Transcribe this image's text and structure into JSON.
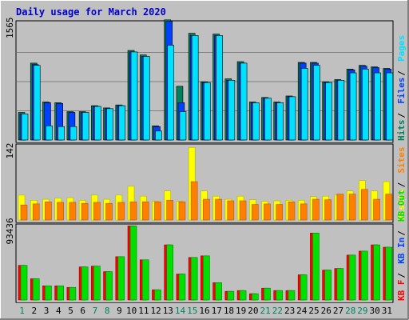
{
  "title": "Daily usage for March 2020",
  "colors": {
    "background": "#c0c0c0",
    "frame": "#ffffff",
    "title": "#0000cc",
    "hits": "#00805c",
    "files": "#0040ff",
    "pages": "#00e0ff",
    "visits": "#ffff00",
    "sites": "#ff8000",
    "kb_in": "#ff0000",
    "kb_out": "#00e000",
    "weekday": "#000000",
    "weekend": "#00805c"
  },
  "chart_data": [
    {
      "type": "bar",
      "panel": "hits-files-pages",
      "ymax_label": "1565",
      "ylim": [
        0,
        1565
      ],
      "categories": [
        "1",
        "2",
        "3",
        "4",
        "5",
        "6",
        "7",
        "8",
        "9",
        "10",
        "11",
        "12",
        "13",
        "14",
        "15",
        "16",
        "17",
        "18",
        "19",
        "20",
        "21",
        "22",
        "23",
        "24",
        "25",
        "26",
        "27",
        "28",
        "29",
        "30",
        "31"
      ],
      "legend": [
        {
          "label": "Hits",
          "color": "#00805c"
        },
        {
          "label": "Files",
          "color": "#0040ff"
        },
        {
          "label": "Pages",
          "color": "#00e0ff"
        }
      ],
      "series": [
        {
          "name": "Hits",
          "values": [
            370,
            1030,
            510,
            500,
            380,
            380,
            460,
            430,
            470,
            1200,
            1140,
            190,
            1610,
            720,
            1430,
            780,
            1420,
            820,
            1050,
            510,
            570,
            510,
            590,
            1040,
            1040,
            780,
            810,
            950,
            1000,
            980,
            960
          ]
        },
        {
          "name": "Files",
          "values": [
            350,
            1010,
            500,
            490,
            370,
            370,
            450,
            420,
            460,
            1180,
            1120,
            180,
            1590,
            500,
            1400,
            770,
            1400,
            800,
            1030,
            500,
            560,
            500,
            580,
            1030,
            1030,
            770,
            800,
            940,
            990,
            970,
            950
          ]
        },
        {
          "name": "Pages",
          "values": [
            350,
            1000,
            190,
            180,
            180,
            370,
            450,
            420,
            460,
            1180,
            1120,
            120,
            1270,
            380,
            1400,
            770,
            1400,
            800,
            1030,
            500,
            560,
            500,
            580,
            960,
            1000,
            770,
            800,
            900,
            950,
            900,
            900
          ]
        }
      ]
    },
    {
      "type": "bar",
      "panel": "visits-sites",
      "ymax_label": "142",
      "ylim": [
        0,
        142
      ],
      "legend": [
        {
          "label": "Visits",
          "color": "#ffff00"
        },
        {
          "label": "Sites",
          "color": "#ff8000"
        }
      ],
      "series": [
        {
          "name": "Visits",
          "values": [
            48,
            38,
            40,
            42,
            43,
            38,
            48,
            40,
            48,
            65,
            46,
            36,
            56,
            36,
            140,
            56,
            46,
            40,
            46,
            39,
            36,
            37,
            38,
            38,
            45,
            46,
            48,
            56,
            76,
            56,
            74
          ]
        },
        {
          "name": "Sites",
          "values": [
            29,
            31,
            35,
            34,
            34,
            32,
            34,
            32,
            34,
            35,
            35,
            35,
            38,
            35,
            74,
            40,
            40,
            37,
            37,
            30,
            31,
            30,
            35,
            31,
            40,
            39,
            50,
            50,
            59,
            40,
            50
          ]
        }
      ]
    },
    {
      "type": "bar",
      "panel": "kb",
      "ymax_label": "93436",
      "ylim": [
        0,
        93436
      ],
      "legend": [
        {
          "label": "KB F",
          "color": "#ff0000"
        },
        {
          "label": "KB In",
          "color": "#0040ff"
        },
        {
          "label": "KB Out",
          "color": "#00e000"
        }
      ],
      "series": [
        {
          "name": "KB F",
          "values": [
            44000,
            27000,
            18000,
            18000,
            16000,
            42000,
            43000,
            36000,
            55000,
            94000,
            51000,
            13000,
            70000,
            33000,
            54000,
            56000,
            22000,
            11000,
            12000,
            8000,
            15000,
            12000,
            12000,
            32000,
            85000,
            38000,
            40000,
            57000,
            62000,
            70000,
            67000
          ]
        },
        {
          "name": "KB Out",
          "values": [
            44000,
            27000,
            18000,
            18000,
            16000,
            42000,
            43000,
            36000,
            55000,
            94000,
            51000,
            13000,
            70000,
            33000,
            54000,
            56000,
            22000,
            11000,
            12000,
            8000,
            15000,
            12000,
            12000,
            32000,
            85000,
            38000,
            40000,
            57000,
            62000,
            70000,
            67000
          ]
        }
      ]
    }
  ],
  "day_labels": [
    {
      "label": "1",
      "weekend": true
    },
    {
      "label": "2",
      "weekend": false
    },
    {
      "label": "3",
      "weekend": false
    },
    {
      "label": "4",
      "weekend": false
    },
    {
      "label": "5",
      "weekend": false
    },
    {
      "label": "6",
      "weekend": false
    },
    {
      "label": "7",
      "weekend": true
    },
    {
      "label": "8",
      "weekend": true
    },
    {
      "label": "9",
      "weekend": false
    },
    {
      "label": "10",
      "weekend": false
    },
    {
      "label": "11",
      "weekend": false
    },
    {
      "label": "12",
      "weekend": false
    },
    {
      "label": "13",
      "weekend": false
    },
    {
      "label": "14",
      "weekend": true
    },
    {
      "label": "15",
      "weekend": true
    },
    {
      "label": "16",
      "weekend": false
    },
    {
      "label": "17",
      "weekend": false
    },
    {
      "label": "18",
      "weekend": false
    },
    {
      "label": "19",
      "weekend": false
    },
    {
      "label": "20",
      "weekend": false
    },
    {
      "label": "21",
      "weekend": true
    },
    {
      "label": "22",
      "weekend": true
    },
    {
      "label": "23",
      "weekend": false
    },
    {
      "label": "24",
      "weekend": false
    },
    {
      "label": "25",
      "weekend": false
    },
    {
      "label": "26",
      "weekend": false
    },
    {
      "label": "27",
      "weekend": false
    },
    {
      "label": "28",
      "weekend": true
    },
    {
      "label": "29",
      "weekend": true
    },
    {
      "label": "30",
      "weekend": false
    },
    {
      "label": "31",
      "weekend": false
    }
  ]
}
